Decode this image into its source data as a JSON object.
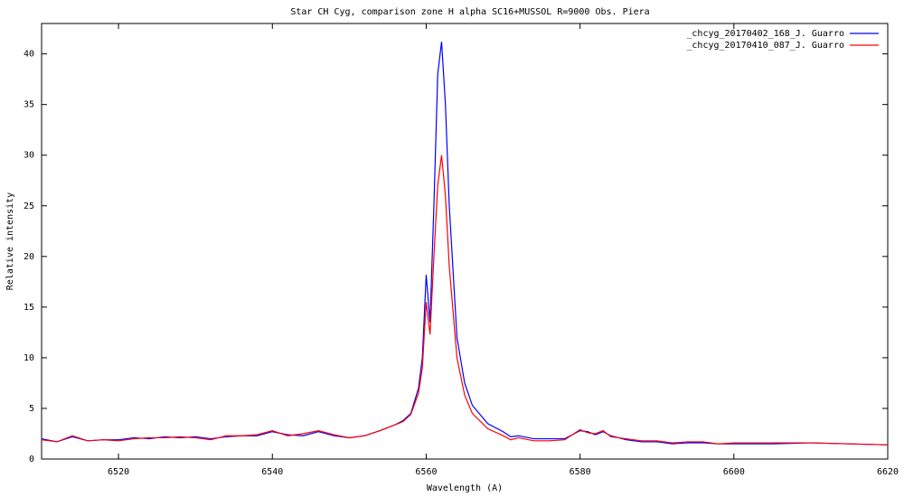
{
  "chart_data": {
    "type": "line",
    "title": "Star  CH Cyg,  comparison zone H alpha  SC16+MUSSOL    R=9000  Obs. Piera",
    "x_label": "Wavelength (A)",
    "y_label": "Relative intensity",
    "x": [
      6510,
      6512,
      6514,
      6516,
      6518,
      6520,
      6522,
      6524,
      6526,
      6528,
      6530,
      6532,
      6534,
      6536,
      6538,
      6540,
      6542,
      6544,
      6546,
      6548,
      6550,
      6552,
      6554,
      6556,
      6557,
      6558,
      6559,
      6559.5,
      6560,
      6560.5,
      6561,
      6561.5,
      6562,
      6562.5,
      6563,
      6564,
      6565,
      6566,
      6568,
      6570,
      6571,
      6572,
      6574,
      6576,
      6578,
      6580,
      6581,
      6582,
      6583,
      6584,
      6586,
      6588,
      6590,
      6592,
      6594,
      6596,
      6598,
      6600,
      6605,
      6610,
      6615,
      6620
    ],
    "series": [
      {
        "name": "_chcyg_20170402_168_J. Guarro",
        "color": "#0000ff",
        "values": [
          2.0,
          1.7,
          2.2,
          1.8,
          1.9,
          1.9,
          2.1,
          2.0,
          2.2,
          2.1,
          2.2,
          2.0,
          2.2,
          2.3,
          2.3,
          2.7,
          2.4,
          2.3,
          2.7,
          2.3,
          2.1,
          2.3,
          2.8,
          3.4,
          3.8,
          4.5,
          7.0,
          10,
          18.2,
          13.5,
          25,
          38,
          41.2,
          35,
          25,
          12,
          7.5,
          5.3,
          3.5,
          2.7,
          2.2,
          2.3,
          2.0,
          2.0,
          2.0,
          2.8,
          2.7,
          2.4,
          2.7,
          2.3,
          1.9,
          1.7,
          1.7,
          1.5,
          1.6,
          1.6,
          1.5,
          1.5,
          1.5,
          1.6,
          1.5,
          1.4
        ]
      },
      {
        "name": "_chcyg_20170410_087_J. Guarro",
        "color": "#ff0000",
        "values": [
          1.9,
          1.7,
          2.3,
          1.8,
          1.9,
          1.8,
          2.0,
          2.1,
          2.1,
          2.2,
          2.1,
          1.9,
          2.3,
          2.3,
          2.4,
          2.8,
          2.3,
          2.5,
          2.8,
          2.4,
          2.1,
          2.3,
          2.8,
          3.4,
          3.7,
          4.4,
          6.5,
          9,
          15.5,
          12.3,
          20,
          27,
          30,
          26,
          19,
          10,
          6.3,
          4.5,
          3.0,
          2.3,
          1.9,
          2.1,
          1.8,
          1.8,
          1.9,
          2.9,
          2.6,
          2.5,
          2.8,
          2.2,
          2.0,
          1.8,
          1.8,
          1.6,
          1.7,
          1.7,
          1.5,
          1.6,
          1.6,
          1.6,
          1.5,
          1.4
        ]
      }
    ],
    "xlim": [
      6510,
      6620
    ],
    "xticks": [
      6520,
      6540,
      6560,
      6580,
      6600,
      6620
    ],
    "ylim": [
      0,
      43
    ],
    "yticks": [
      0,
      5,
      10,
      15,
      20,
      25,
      30,
      35,
      40
    ],
    "grid": false,
    "legend": "top-right"
  }
}
